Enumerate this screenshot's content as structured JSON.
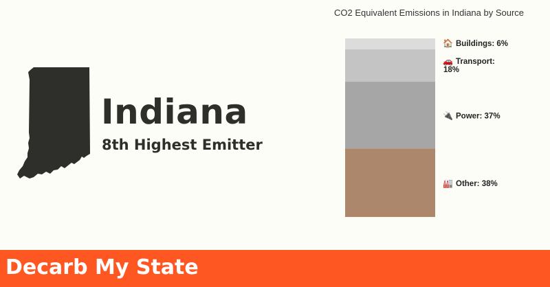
{
  "state": {
    "name": "Indiana",
    "rank_text": "8th Highest Emitter"
  },
  "chart_data": {
    "type": "bar",
    "stacked": true,
    "title": "CO2 Equivalent Emissions in Indiana by Source",
    "categories": [
      "Indiana"
    ],
    "series": [
      {
        "name": "Other",
        "values": [
          38
        ],
        "color": "#ad876c",
        "icon": "factory-icon",
        "label": "Other: 38%"
      },
      {
        "name": "Power",
        "values": [
          37
        ],
        "color": "#a6a6a6",
        "icon": "plug-icon",
        "label": "Power: 37%"
      },
      {
        "name": "Transport",
        "values": [
          18
        ],
        "color": "#c4c4c4",
        "icon": "car-icon",
        "label": "Transport: 18%"
      },
      {
        "name": "Buildings",
        "values": [
          6
        ],
        "color": "#dcdcdc",
        "icon": "house-icon",
        "label": "Buildings: 6%"
      }
    ],
    "ylim": [
      0,
      100
    ]
  },
  "footer": {
    "brand": "Decarb My State",
    "color": "#ff5722"
  }
}
